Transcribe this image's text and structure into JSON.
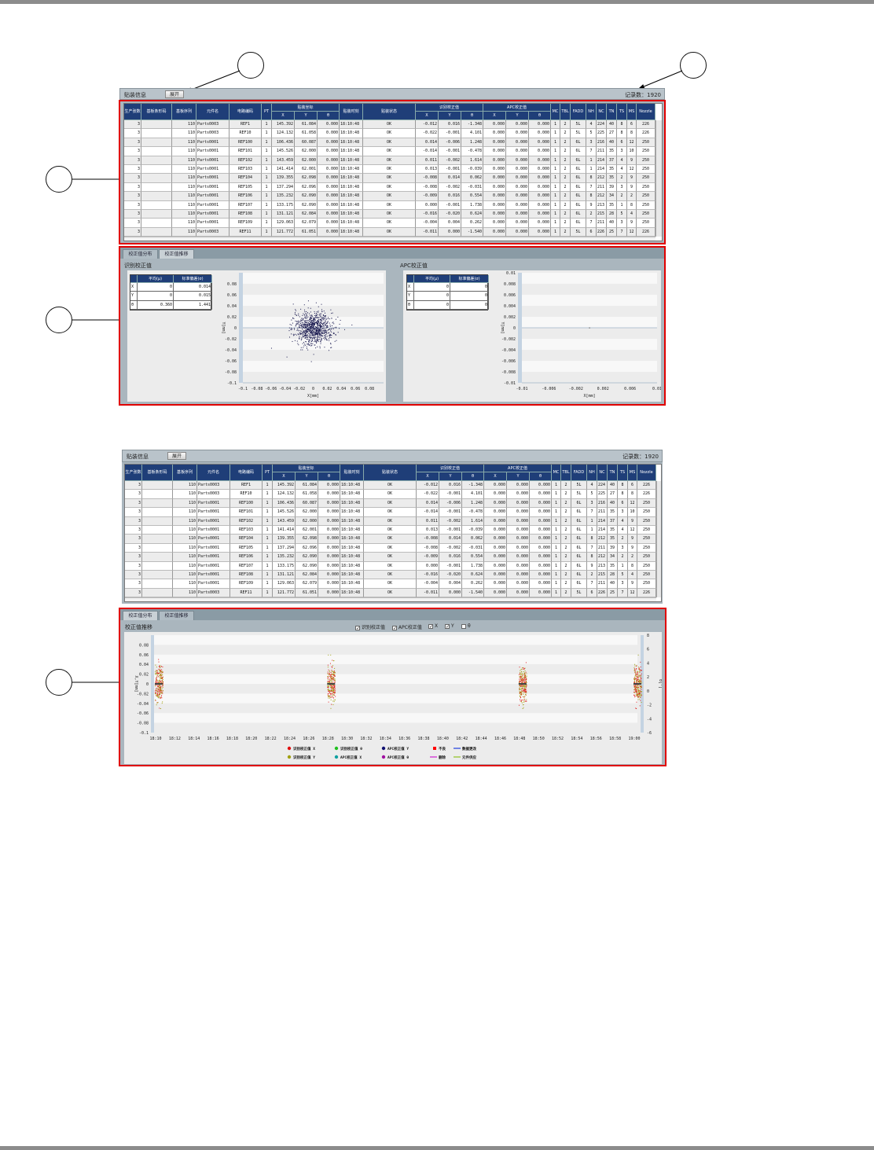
{
  "header": {
    "title": "贴装信息",
    "expand_button": "展开",
    "record_count": "记录数：1920"
  },
  "callouts": [
    "",
    "",
    "",
    "",
    ""
  ],
  "table": {
    "columns": [
      {
        "label": "生产张数"
      },
      {
        "label": "基板条形码"
      },
      {
        "label": "基板序列"
      },
      {
        "label": "元件名"
      },
      {
        "label": "电路编码"
      },
      {
        "label": "PT"
      },
      {
        "group": "贴装坐标",
        "label": "X"
      },
      {
        "group": "贴装坐标",
        "label": "Y"
      },
      {
        "group": "贴装坐标",
        "label": "θ"
      },
      {
        "label": "贴装时刻"
      },
      {
        "label": "贴装状态"
      },
      {
        "group": "识别校正值",
        "label": "X"
      },
      {
        "group": "识别校正值",
        "label": "Y"
      },
      {
        "group": "识别校正值",
        "label": "θ"
      },
      {
        "group": "APC校正值",
        "label": "X"
      },
      {
        "group": "APC校正值",
        "label": "Y"
      },
      {
        "group": "APC校正值",
        "label": "θ"
      },
      {
        "label": "MC"
      },
      {
        "label": "TBL"
      },
      {
        "label": "FADD"
      },
      {
        "label": "NH"
      },
      {
        "label": "NC"
      },
      {
        "label": "TN"
      },
      {
        "label": "TS"
      },
      {
        "label": "MS"
      },
      {
        "label": "Nozzle"
      }
    ],
    "groups": [
      "贴装坐标",
      "识别校正值",
      "APC校正值"
    ],
    "rows": [
      [
        "3",
        "",
        "110",
        "Parts0003",
        "REF1",
        "1",
        "145.392",
        "61.084",
        "0.000",
        "18:10:48",
        "OK",
        "-0.012",
        "0.016",
        "-1.348",
        "0.000",
        "0.000",
        "0.000",
        "1",
        "2",
        "5L",
        "4",
        "224",
        "40",
        "8",
        "6",
        "226"
      ],
      [
        "3",
        "",
        "110",
        "Parts0003",
        "REF10",
        "1",
        "124.132",
        "61.058",
        "0.000",
        "18:10:48",
        "OK",
        "-0.022",
        "-0.001",
        "4.101",
        "0.000",
        "0.000",
        "0.000",
        "1",
        "2",
        "5L",
        "5",
        "225",
        "27",
        "8",
        "8",
        "226"
      ],
      [
        "3",
        "",
        "110",
        "Parts0001",
        "REF100",
        "1",
        "106.436",
        "60.087",
        "0.000",
        "18:10:48",
        "OK",
        "0.014",
        "-0.006",
        "1.248",
        "0.000",
        "0.000",
        "0.000",
        "1",
        "2",
        "6L",
        "3",
        "216",
        "40",
        "6",
        "12",
        "250"
      ],
      [
        "3",
        "",
        "110",
        "Parts0001",
        "REF101",
        "1",
        "145.526",
        "62.000",
        "0.000",
        "18:10:48",
        "OK",
        "-0.014",
        "-0.001",
        "-0.478",
        "0.000",
        "0.000",
        "0.000",
        "1",
        "2",
        "6L",
        "7",
        "211",
        "35",
        "3",
        "10",
        "250"
      ],
      [
        "3",
        "",
        "110",
        "Parts0001",
        "REF102",
        "1",
        "143.459",
        "62.000",
        "0.000",
        "18:10:48",
        "OK",
        "0.011",
        "-0.002",
        "1.614",
        "0.000",
        "0.000",
        "0.000",
        "1",
        "2",
        "6L",
        "1",
        "214",
        "37",
        "4",
        "9",
        "250"
      ],
      [
        "3",
        "",
        "110",
        "Parts0001",
        "REF103",
        "1",
        "141.414",
        "62.001",
        "0.000",
        "18:10:48",
        "OK",
        "0.013",
        "-0.001",
        "-0.039",
        "0.000",
        "0.000",
        "0.000",
        "1",
        "2",
        "6L",
        "1",
        "214",
        "35",
        "4",
        "12",
        "250"
      ],
      [
        "3",
        "",
        "110",
        "Parts0001",
        "REF104",
        "1",
        "139.355",
        "62.098",
        "0.000",
        "18:10:48",
        "OK",
        "-0.008",
        "0.014",
        "0.062",
        "0.000",
        "0.000",
        "0.000",
        "1",
        "2",
        "6L",
        "8",
        "212",
        "35",
        "2",
        "9",
        "250"
      ],
      [
        "3",
        "",
        "110",
        "Parts0001",
        "REF105",
        "1",
        "137.294",
        "62.096",
        "0.000",
        "18:10:48",
        "OK",
        "-0.008",
        "-0.002",
        "-0.031",
        "0.000",
        "0.000",
        "0.000",
        "1",
        "2",
        "6L",
        "7",
        "211",
        "39",
        "3",
        "9",
        "250"
      ],
      [
        "3",
        "",
        "110",
        "Parts0001",
        "REF106",
        "1",
        "135.232",
        "62.090",
        "0.000",
        "18:10:48",
        "OK",
        "-0.009",
        "0.016",
        "0.554",
        "0.000",
        "0.000",
        "0.000",
        "1",
        "2",
        "6L",
        "8",
        "212",
        "34",
        "2",
        "2",
        "250"
      ],
      [
        "3",
        "",
        "110",
        "Parts0001",
        "REF107",
        "1",
        "133.175",
        "62.090",
        "0.000",
        "18:10:48",
        "OK",
        "0.000",
        "-0.001",
        "1.738",
        "0.000",
        "0.000",
        "0.000",
        "1",
        "2",
        "6L",
        "9",
        "213",
        "35",
        "1",
        "8",
        "250"
      ],
      [
        "3",
        "",
        "110",
        "Parts0001",
        "REF108",
        "1",
        "131.121",
        "62.084",
        "0.000",
        "18:10:48",
        "OK",
        "-0.016",
        "-0.020",
        "0.624",
        "0.000",
        "0.000",
        "0.000",
        "1",
        "2",
        "6L",
        "2",
        "215",
        "28",
        "5",
        "4",
        "250"
      ],
      [
        "3",
        "",
        "110",
        "Parts0001",
        "REF109",
        "1",
        "129.063",
        "62.079",
        "0.000",
        "18:10:48",
        "OK",
        "-0.004",
        "0.004",
        "0.262",
        "0.000",
        "0.000",
        "0.000",
        "1",
        "2",
        "6L",
        "7",
        "211",
        "40",
        "3",
        "9",
        "250"
      ],
      [
        "3",
        "",
        "110",
        "Parts0003",
        "REF11",
        "1",
        "121.772",
        "61.051",
        "0.000",
        "18:10:48",
        "OK",
        "-0.011",
        "0.000",
        "-1.540",
        "0.000",
        "0.000",
        "0.000",
        "1",
        "2",
        "5L",
        "6",
        "226",
        "25",
        "7",
        "12",
        "226"
      ]
    ]
  },
  "tabs": [
    "校正值分布",
    "校正值推移"
  ],
  "distribution": {
    "recognition": {
      "title": "识别校正值",
      "stats_header": [
        "",
        "平均(μ)",
        "标准偏差(σ)"
      ],
      "stats": [
        [
          "X",
          "0",
          "0.014"
        ],
        [
          "Y",
          "0",
          "0.015"
        ],
        [
          "θ",
          "0.360",
          "1.441"
        ]
      ]
    },
    "apc": {
      "title": "APC校正值",
      "stats_header": [
        "",
        "平均(μ)",
        "标准偏差(σ)"
      ],
      "stats": [
        [
          "X",
          "0",
          "0"
        ],
        [
          "Y",
          "0",
          "0"
        ],
        [
          "θ",
          "0",
          "0"
        ]
      ]
    }
  },
  "trend": {
    "title": "校正值推移",
    "checkboxes": [
      {
        "label": "识别校正值",
        "checked": true
      },
      {
        "label": "APC校正值",
        "checked": true
      },
      {
        "label": "X",
        "checked": true
      },
      {
        "label": "Y",
        "checked": true
      },
      {
        "label": "θ",
        "checked": false
      }
    ],
    "legend": [
      {
        "label": "识别校正值 X",
        "marker": "dot",
        "color": "#e01010"
      },
      {
        "label": "识别校正值 θ",
        "marker": "dot",
        "color": "#20c020"
      },
      {
        "label": "APC校正值 Y",
        "marker": "dot",
        "color": "#101070"
      },
      {
        "label": "不良",
        "marker": "square",
        "color": "#ff0000"
      },
      {
        "label": "数据更改",
        "marker": "line",
        "color": "#2040e0"
      },
      {
        "label": "识别校正值 Y",
        "marker": "dot",
        "color": "#a0a010"
      },
      {
        "label": "APC校正值 X",
        "marker": "dot",
        "color": "#10a0a0"
      },
      {
        "label": "APC校正值 θ",
        "marker": "dot",
        "color": "#a010a0"
      },
      {
        "label": "删除",
        "marker": "line",
        "color": "#d020d0"
      },
      {
        "label": "元件供应",
        "marker": "line",
        "color": "#90c020"
      }
    ]
  },
  "chart_data": [
    {
      "type": "scatter",
      "title": "识别校正值",
      "xlabel": "X[mm]",
      "ylabel": "Y[mm]",
      "xlim": [
        -0.1,
        0.1
      ],
      "ylim": [
        -0.1,
        0.1
      ],
      "xticks": [
        "-0.1",
        "-0.08",
        "-0.06",
        "-0.04",
        "-0.02",
        "0",
        "0.02",
        "0.04",
        "0.06",
        "0.08"
      ],
      "yticks": [
        "0.08",
        "0.06",
        "0.04",
        "0.02",
        "0",
        "-0.02",
        "-0.04",
        "-0.06",
        "-0.08",
        "-0.1"
      ],
      "distribution": {
        "mean_x": 0,
        "mean_y": 0,
        "sd_x": 0.014,
        "sd_y": 0.015
      },
      "color": "#1a1a50",
      "grid": "horizontal bands"
    },
    {
      "type": "scatter",
      "title": "APC校正值",
      "xlabel": "X[mm]",
      "ylabel": "Y[mm]",
      "xlim": [
        -0.01,
        0.01
      ],
      "ylim": [
        -0.01,
        0.01
      ],
      "xticks": [
        "-0.01",
        "-0.006",
        "-0.002",
        "0.002",
        "0.006",
        "0.01"
      ],
      "yticks": [
        "0.01",
        "0.008",
        "0.006",
        "0.004",
        "0.002",
        "0",
        "-0.002",
        "-0.004",
        "-0.006",
        "-0.008",
        "-0.01"
      ],
      "points": [
        [
          0,
          0
        ]
      ],
      "color": "#555555"
    },
    {
      "type": "scatter",
      "title": "校正值推移",
      "ylabel": "X,Y[mm]",
      "y2label": "θ[°]",
      "ylim": [
        -0.1,
        0.1
      ],
      "y2lim": [
        -6,
        8
      ],
      "yticks": [
        "0.08",
        "0.06",
        "0.04",
        "0.02",
        "0",
        "-0.02",
        "-0.04",
        "-0.06",
        "-0.08",
        "-0.1"
      ],
      "y2ticks": [
        "8",
        "6",
        "4",
        "2",
        "0",
        "-2",
        "-4",
        "-6"
      ],
      "xticks": [
        "18:10",
        "18:12",
        "18:14",
        "18:16",
        "18:18",
        "18:20",
        "18:22",
        "18:24",
        "18:26",
        "18:28",
        "18:30",
        "18:32",
        "18:34",
        "18:36",
        "18:38",
        "18:40",
        "18:42",
        "18:44",
        "18:46",
        "18:48",
        "18:50",
        "18:52",
        "18:54",
        "18:56",
        "18:58",
        "19:00"
      ],
      "clusters": [
        {
          "time": "18:10"
        },
        {
          "time": "18:28"
        },
        {
          "time": "18:48"
        },
        {
          "time": "19:00"
        }
      ],
      "series": [
        {
          "name": "识别校正值 X",
          "sd": 0.014
        },
        {
          "name": "识别校正值 Y",
          "sd": 0.015
        }
      ]
    }
  ]
}
